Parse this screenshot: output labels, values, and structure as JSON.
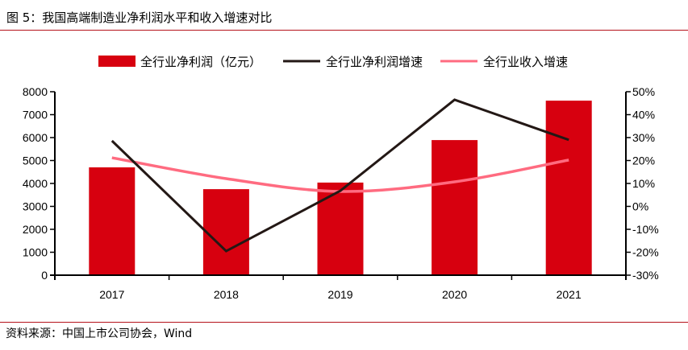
{
  "header": {
    "title": "图 5：我国高端制造业净利润水平和收入增速对比"
  },
  "footer": {
    "source": "资料来源：中国上市公司协会，Wind"
  },
  "colors": {
    "bar": "#D7000F",
    "profit_growth_line": "#231815",
    "revenue_growth_line": "#FF6B80",
    "rule": "#B5121B",
    "axis": "#000000"
  },
  "chart_data": {
    "type": "bar",
    "title": "我国高端制造业净利润水平和收入增速对比",
    "categories": [
      "2017",
      "2018",
      "2019",
      "2020",
      "2021"
    ],
    "series": [
      {
        "name": "全行业净利润（亿元）",
        "type": "bar",
        "axis": "left",
        "values": [
          4700,
          3750,
          4040,
          5890,
          7610
        ]
      },
      {
        "name": "全行业净利润增速",
        "type": "line",
        "axis": "right",
        "values": [
          28.6,
          -19.5,
          6.8,
          46.5,
          29.0
        ]
      },
      {
        "name": "全行业收入增速",
        "type": "line",
        "axis": "right",
        "values": [
          21.2,
          12.1,
          6.5,
          10.7,
          20.2
        ]
      }
    ],
    "left_axis": {
      "label": "",
      "ylim": [
        0,
        8000
      ],
      "ticks": [
        0,
        1000,
        2000,
        3000,
        4000,
        5000,
        6000,
        7000,
        8000
      ],
      "tick_labels": [
        "0",
        "1000",
        "2000",
        "3000",
        "4000",
        "5000",
        "6000",
        "7000",
        "8000"
      ]
    },
    "right_axis": {
      "label": "",
      "ylim": [
        -30,
        50
      ],
      "ticks": [
        -30,
        -20,
        -10,
        0,
        10,
        20,
        30,
        40,
        50
      ],
      "tick_labels": [
        "-30%",
        "-20%",
        "-10%",
        "0%",
        "10%",
        "20%",
        "30%",
        "40%",
        "50%"
      ]
    },
    "xlabel": "",
    "grid": false,
    "legend_position": "top-center"
  }
}
